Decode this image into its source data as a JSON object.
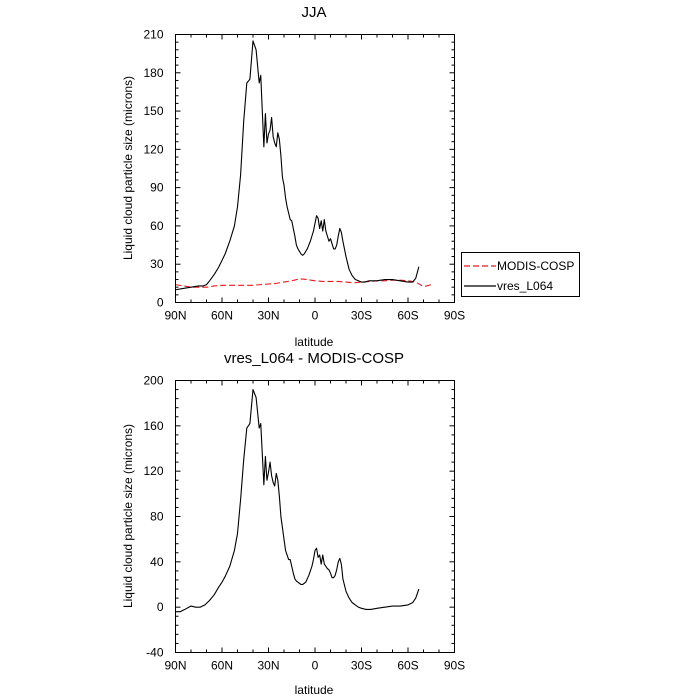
{
  "chart_data": [
    {
      "type": "line",
      "title": "JJA",
      "xlabel": "latitude",
      "ylabel": "Liquid cloud particle size (microns)",
      "xlim": [
        90,
        -90
      ],
      "ylim": [
        0,
        210
      ],
      "xticks": [
        90,
        60,
        30,
        0,
        -30,
        -60,
        -90
      ],
      "xtick_labels": [
        "90N",
        "60N",
        "30N",
        "0",
        "30S",
        "60S",
        "90S"
      ],
      "yticks": [
        0,
        30,
        60,
        90,
        120,
        150,
        180,
        210
      ],
      "ytick_labels": [
        "0",
        "30",
        "60",
        "90",
        "120",
        "150",
        "180",
        "210"
      ],
      "legend": {
        "placement": "right",
        "entries": [
          "MODIS-COSP",
          "vres_L064"
        ]
      },
      "series": [
        {
          "name": "MODIS-COSP",
          "color": "#e8191c",
          "dash": "dashed",
          "x": [
            90,
            85,
            80,
            75,
            70,
            65,
            60,
            55,
            50,
            45,
            40,
            35,
            30,
            25,
            20,
            15,
            10,
            5,
            0,
            -5,
            -10,
            -15,
            -20,
            -25,
            -30,
            -35,
            -40,
            -45,
            -50,
            -55,
            -60,
            -65,
            -70,
            -72,
            -75
          ],
          "y": [
            14,
            13,
            12,
            12,
            12,
            13,
            13.5,
            13.5,
            13.5,
            13.5,
            13.5,
            14,
            14.5,
            15,
            16,
            17,
            18.5,
            18,
            17,
            16.5,
            16.5,
            16.5,
            16,
            15.5,
            16,
            16.5,
            17,
            17,
            17.5,
            17.5,
            17,
            16,
            12.5,
            13,
            14
          ]
        },
        {
          "name": "vres_L064",
          "color": "#000000",
          "dash": "solid",
          "x": [
            90,
            85,
            80,
            75,
            72,
            70,
            68,
            65,
            62,
            60,
            58,
            55,
            52,
            50,
            48,
            46,
            44,
            42,
            40,
            38,
            36,
            35,
            34,
            33,
            32,
            31,
            30,
            29,
            28,
            27,
            26,
            25,
            24,
            23,
            22,
            21,
            20,
            19,
            18,
            17,
            16,
            15,
            14,
            13,
            12,
            11,
            10,
            9,
            8,
            7,
            6,
            5,
            4,
            3,
            2,
            1,
            0,
            -1,
            -2,
            -3,
            -4,
            -5,
            -6,
            -7,
            -8,
            -9,
            -10,
            -11,
            -12,
            -13,
            -14,
            -15,
            -16,
            -17,
            -18,
            -20,
            -22,
            -24,
            -26,
            -28,
            -30,
            -32,
            -35,
            -40,
            -45,
            -50,
            -55,
            -60,
            -63,
            -65,
            -67
          ],
          "y": [
            10,
            11,
            12,
            13,
            13,
            14,
            17,
            22,
            28,
            33,
            38,
            48,
            60,
            75,
            100,
            142,
            172,
            175,
            205,
            198,
            172,
            178,
            150,
            122,
            148,
            125,
            132,
            135,
            145,
            130,
            125,
            122,
            133,
            128,
            115,
            98,
            92,
            82,
            75,
            70,
            65,
            64,
            58,
            52,
            45,
            42,
            40,
            38,
            37,
            38,
            40,
            42,
            45,
            48,
            52,
            56,
            62,
            68,
            66,
            58,
            64,
            56,
            65,
            56,
            52,
            48,
            50,
            46,
            42,
            42,
            45,
            52,
            58,
            55,
            48,
            36,
            26,
            21,
            18,
            17,
            16,
            16,
            17,
            17,
            18,
            18,
            17,
            16,
            16,
            19,
            28
          ]
        }
      ]
    },
    {
      "type": "line",
      "title": "vres_L064 - MODIS-COSP",
      "xlabel": "latitude",
      "ylabel": "Liquid cloud particle size (microns)",
      "xlim": [
        90,
        -90
      ],
      "ylim": [
        -40,
        200
      ],
      "xticks": [
        90,
        60,
        30,
        0,
        -30,
        -60,
        -90
      ],
      "xtick_labels": [
        "90N",
        "60N",
        "30N",
        "0",
        "30S",
        "60S",
        "90S"
      ],
      "yticks": [
        -40,
        0,
        40,
        80,
        120,
        160,
        200
      ],
      "ytick_labels": [
        "-40",
        "0",
        "40",
        "80",
        "120",
        "160",
        "200"
      ],
      "series": [
        {
          "color": "#000000",
          "dash": "solid",
          "x": [
            90,
            87,
            84,
            80,
            77,
            74,
            71,
            68,
            65,
            62,
            60,
            58,
            55,
            52,
            50,
            48,
            46,
            44,
            42,
            40,
            38,
            36,
            35,
            34,
            33,
            32,
            31,
            30,
            29,
            28,
            27,
            26,
            25,
            24,
            23,
            22,
            21,
            20,
            19,
            18,
            17,
            16,
            15,
            14,
            13,
            12,
            11,
            10,
            9,
            8,
            7,
            6,
            5,
            4,
            3,
            2,
            1,
            0,
            -1,
            -2,
            -3,
            -4,
            -5,
            -6,
            -7,
            -8,
            -9,
            -10,
            -11,
            -12,
            -13,
            -14,
            -15,
            -16,
            -17,
            -18,
            -20,
            -22,
            -24,
            -26,
            -28,
            -30,
            -33,
            -36,
            -40,
            -45,
            -50,
            -55,
            -60,
            -63,
            -65,
            -67
          ],
          "y": [
            -4,
            -4,
            -2,
            1,
            0,
            0,
            2,
            6,
            11,
            18,
            22,
            27,
            36,
            50,
            65,
            95,
            130,
            158,
            162,
            192,
            185,
            158,
            162,
            135,
            108,
            133,
            112,
            119,
            128,
            116,
            110,
            107,
            118,
            112,
            98,
            80,
            70,
            60,
            50,
            46,
            42,
            42,
            36,
            30,
            25,
            23,
            22,
            21,
            20,
            20,
            21,
            22,
            25,
            28,
            32,
            36,
            42,
            50,
            52,
            44,
            46,
            38,
            46,
            38,
            36,
            34,
            33,
            30,
            26,
            26,
            28,
            33,
            40,
            43,
            38,
            25,
            14,
            8,
            4,
            2,
            0,
            -1,
            -2,
            -2,
            -1,
            0,
            1,
            1,
            2,
            4,
            8,
            16
          ]
        }
      ]
    }
  ]
}
